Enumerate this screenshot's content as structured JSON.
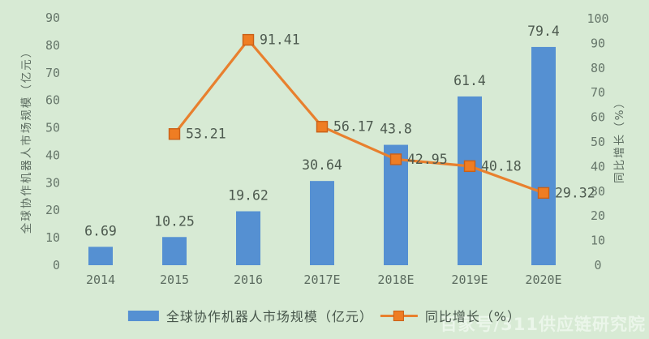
{
  "page": {
    "background": "#d7ead4"
  },
  "chart_data": {
    "type": "bar+line combo",
    "categories": [
      "2014",
      "2015",
      "2016",
      "2017E",
      "2018E",
      "2019E",
      "2020E"
    ],
    "series": [
      {
        "name": "全球协作机器人市场规模（亿元）",
        "type": "bar",
        "axis": "left",
        "color": "#5590d2",
        "values": [
          6.69,
          10.25,
          19.62,
          30.64,
          43.8,
          61.4,
          79.4
        ],
        "labels": [
          "6.69",
          "10.25",
          "19.62",
          "30.64",
          "43.8",
          "61.4",
          "79.4"
        ]
      },
      {
        "name": "同比增长（%）",
        "type": "line",
        "axis": "right",
        "color": "#e8802e",
        "marker": "square",
        "values": [
          null,
          53.21,
          91.41,
          56.17,
          42.95,
          40.18,
          29.32
        ],
        "labels": [
          "",
          "53.21",
          "91.41",
          "56.17",
          "42.95",
          "40.18",
          "29.32"
        ]
      }
    ],
    "left_axis": {
      "title": "全球协作机器人市场规模（亿元）",
      "min": 0,
      "max": 90,
      "step": 10
    },
    "right_axis": {
      "title": "同比增长（%）",
      "min": 0,
      "max": 100,
      "step": 10
    },
    "grid": false,
    "legend_position": "bottom"
  },
  "legend": {
    "bar_label": "全球协作机器人市场规模（亿元）",
    "line_label": "同比增长（%）"
  },
  "watermark": "百家号/311供应链研究院",
  "colors": {
    "background": "#d7ead4",
    "bar": "#5590d2",
    "line": "#e8802e",
    "marker_fill": "#ef7d23",
    "marker_stroke": "#c96018",
    "tick_text": "#66766a",
    "label_text": "#4d5a4f",
    "category_text": "#5c6c60"
  }
}
